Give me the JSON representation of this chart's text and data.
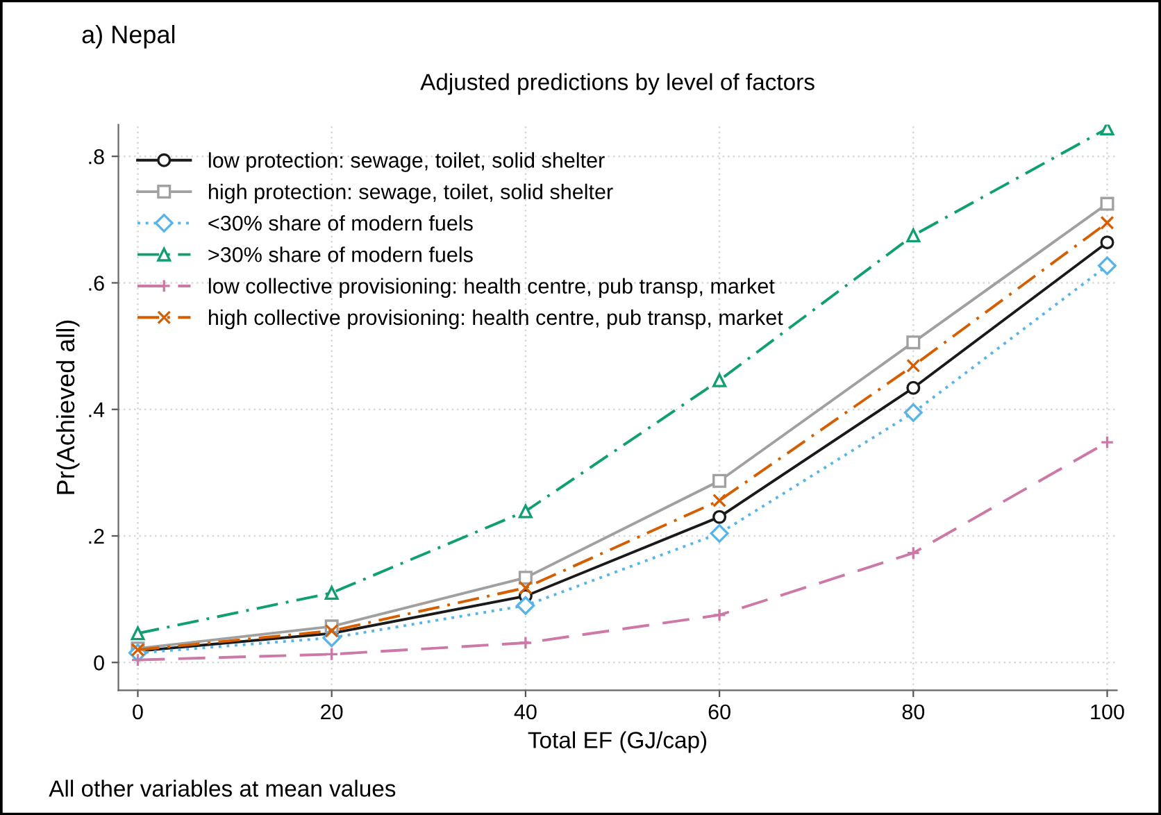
{
  "chart_data": {
    "type": "line",
    "title": "Adjusted predictions by level of factors",
    "subtitle": "a) Nepal",
    "xlabel": "Total EF (GJ/cap)",
    "ylabel": "Pr(Achieved all)",
    "annotations": [
      "All other variables at mean values"
    ],
    "x": [
      0,
      20,
      40,
      60,
      80,
      100
    ],
    "xlim": [
      -2,
      101
    ],
    "xticks": [
      0,
      20,
      40,
      60,
      80,
      100
    ],
    "ylim": [
      -0.044,
      0.85
    ],
    "yticks": [
      {
        "value": 0,
        "label": "0"
      },
      {
        "value": 0.2,
        "label": ".2"
      },
      {
        "value": 0.4,
        "label": ".4"
      },
      {
        "value": 0.6,
        "label": ".6"
      },
      {
        "value": 0.8,
        "label": ".8"
      }
    ],
    "grid": true,
    "legend": "top left",
    "series": [
      {
        "name": "low protection: sewage, toilet, solid shelter",
        "color": "#1a1a1a",
        "marker": "circle",
        "line_style": "solid",
        "values": [
          0.018,
          0.046,
          0.105,
          0.23,
          0.434,
          0.664
        ]
      },
      {
        "name": "high protection: sewage, toilet, solid shelter",
        "color": "#a0a0a0",
        "marker": "square",
        "line_style": "solid",
        "values": [
          0.022,
          0.057,
          0.134,
          0.287,
          0.506,
          0.725
        ]
      },
      {
        "name": "<30% share of modern fuels",
        "color": "#56b4e9",
        "marker": "diamond",
        "line_style": "dotted",
        "values": [
          0.015,
          0.039,
          0.09,
          0.204,
          0.395,
          0.627
        ]
      },
      {
        "name": ">30% share of modern fuels",
        "color": "#109e73",
        "marker": "triangle",
        "line_style": "dashdot",
        "values": [
          0.046,
          0.11,
          0.239,
          0.446,
          0.675,
          0.844
        ]
      },
      {
        "name": "low collective provisioning: health centre, pub transp, market",
        "color": "#cc79a7",
        "marker": "plus",
        "line_style": "longdash",
        "values": [
          0.004,
          0.013,
          0.031,
          0.075,
          0.173,
          0.348
        ]
      },
      {
        "name": "high collective provisioning: health centre, pub transp, market",
        "color": "#d55e00",
        "marker": "cross",
        "line_style": "dashdot",
        "values": [
          0.02,
          0.05,
          0.118,
          0.256,
          0.469,
          0.695
        ]
      }
    ]
  }
}
